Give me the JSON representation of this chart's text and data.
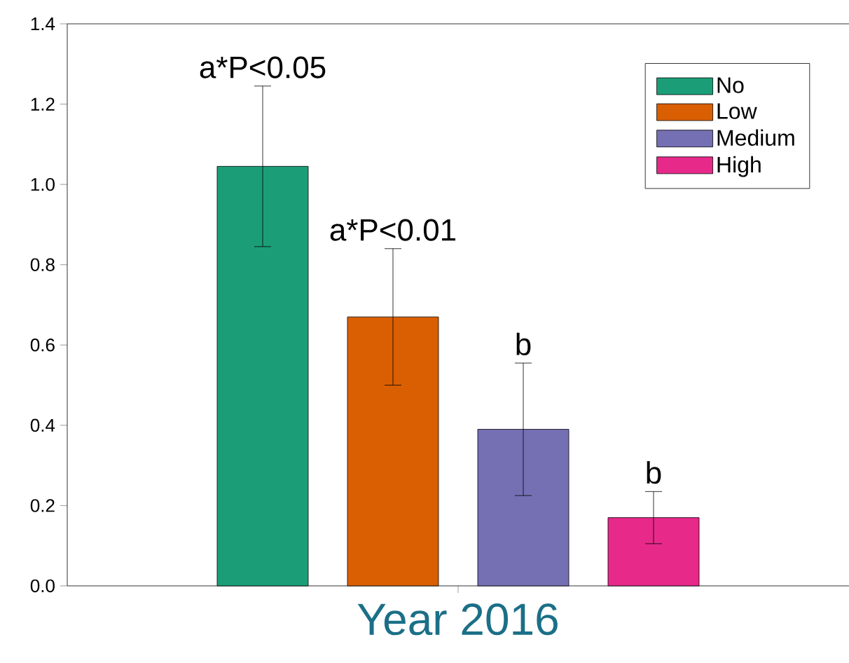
{
  "chart_data": {
    "type": "bar",
    "categories": [
      "Year 2016"
    ],
    "series": [
      {
        "name": "No",
        "color": "#1b9e77",
        "values": [
          1.045
        ],
        "errors": [
          0.2
        ]
      },
      {
        "name": "Low",
        "color": "#d95f02",
        "values": [
          0.67
        ],
        "errors": [
          0.17
        ]
      },
      {
        "name": "Medium",
        "color": "#7570b3",
        "values": [
          0.39
        ],
        "errors": [
          0.165
        ]
      },
      {
        "name": "High",
        "color": "#e7298a",
        "values": [
          0.17
        ],
        "errors": [
          0.065
        ]
      }
    ],
    "annotations": [
      "a*P<0.05",
      "a*P<0.01",
      "b",
      "b"
    ],
    "ylim": [
      0,
      1.4
    ],
    "yticks": [
      {
        "value": 0,
        "label": "0.0"
      },
      {
        "value": 0.2,
        "label": "0.2"
      },
      {
        "value": 0.4,
        "label": "0.4"
      },
      {
        "value": 0.6,
        "label": "0.6"
      },
      {
        "value": 0.8,
        "label": "0.8"
      },
      {
        "value": 1.0,
        "label": "1.0"
      },
      {
        "value": 1.2,
        "label": "1.2"
      },
      {
        "value": 1.4,
        "label": "1.4"
      }
    ],
    "legend": "top right",
    "grid": false
  }
}
